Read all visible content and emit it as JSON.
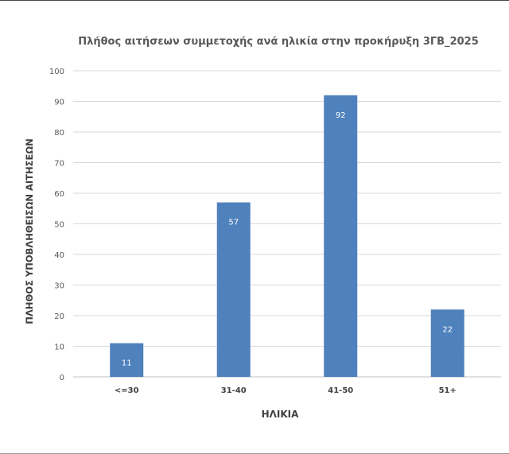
{
  "chart_data": {
    "type": "bar",
    "title": "Πλήθος αιτήσεων συμμετοχής ανά ηλικία στην προκήρυξη 3ΓΒ_2025",
    "xlabel": "ΗΛΙΚΙΑ",
    "ylabel": "ΠΛΗΘΟΣ ΥΠΟΒΛΗΘΕΙΣΩΝ ΑΙΤΗΣΕΩΝ",
    "categories": [
      "<=30",
      "31-40",
      "41-50",
      "51+"
    ],
    "values": [
      11,
      57,
      92,
      22
    ],
    "ylim": [
      0,
      100
    ],
    "yticks": [
      0,
      10,
      20,
      30,
      40,
      50,
      60,
      70,
      80,
      90,
      100
    ],
    "grid": true,
    "legend": "none",
    "bar_color": "#4f81bd"
  }
}
